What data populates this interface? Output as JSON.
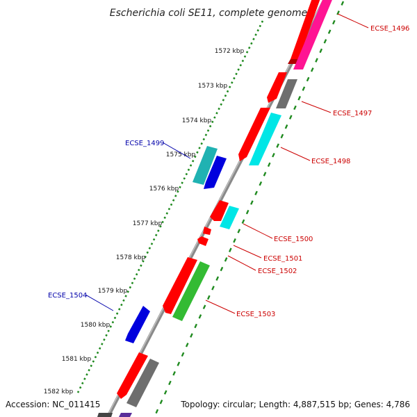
{
  "title": "Escherichia coli SE11, complete genome",
  "footer": {
    "accession": "Accession: NC_011415",
    "summary": "Topology: circular; Length: 4,887,515 bp; Genes: 4,786"
  },
  "scale_labels": [
    "1572 kbp",
    "1573 kbp",
    "1574 kbp",
    "1575 kbp",
    "1576 kbp",
    "1577 kbp",
    "1578 kbp",
    "1579 kbp",
    "1580 kbp",
    "1581 kbp",
    "1582 kbp"
  ],
  "gene_labels": {
    "ecse_1496": "ECSE_1496",
    "ecse_1497": "ECSE_1497",
    "ecse_1498": "ECSE_1498",
    "ecse_1499": "ECSE_1499",
    "ecse_1500": "ECSE_1500",
    "ecse_1501": "ECSE_1501",
    "ecse_1502": "ECSE_1502",
    "ecse_1503": "ECSE_1503",
    "ecse_1504": "ECSE_1504"
  },
  "colors": {
    "backbone": "#8a8a8a",
    "tick_green": "#1f8a1f",
    "cds_red": "#ff0000",
    "cds_pink": "#ff1493",
    "cds_gray": "#6e6e6e",
    "cds_cyan": "#00e6e6",
    "cds_teal": "#20b2b2",
    "cds_blue": "#0000dd",
    "cds_green": "#33bb33",
    "label_red": "#cc0000",
    "label_blue": "#0000aa"
  }
}
